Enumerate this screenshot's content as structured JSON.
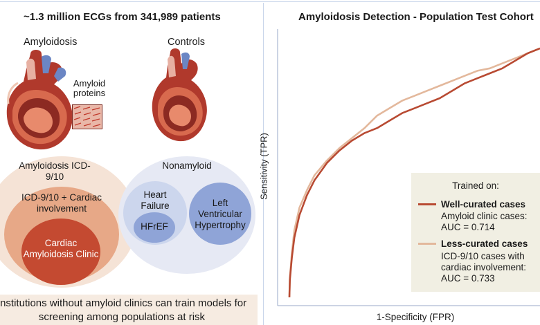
{
  "left_panel": {
    "title": "~1.3 million ECGs from 341,989 patients",
    "amyloidosis_label": "Amyloidosis",
    "controls_label": "Controls",
    "amyloid_callout": "Amyloid proteins",
    "venn_amyloidosis": {
      "outer": "Amyloidosis ICD-9/10",
      "middle": "ICD-9/10 + Cardiac involvement",
      "inner": "Cardiac Amyloidosis Clinic"
    },
    "venn_controls": {
      "outer": "Nonamyloid",
      "heart_failure": "Heart Failure",
      "hfref": "HFrEF",
      "lvh": "Left Ventricular Hypertrophy"
    },
    "banner": "Institutions without amyloid clinics can train models for screening among populations at risk",
    "colors": {
      "amy_outer": "#f5e3d6",
      "amy_mid": "#e7a887",
      "amy_inner": "#c44a31",
      "ctrl_outer": "#e6e9f4",
      "ctrl_light": "#ccd6ed",
      "ctrl_dark": "#8fa4d7",
      "banner": "#f6ebe1"
    }
  },
  "chart_data": {
    "type": "line",
    "title": "Amyloidosis Detection - Population Test Cohort",
    "xlabel": "1-Specificity (FPR)",
    "ylabel": "Sensitivity (TPR)",
    "xlim": [
      0,
      1
    ],
    "ylim": [
      0,
      1
    ],
    "grid": false,
    "legend": {
      "placement": "bottom-right",
      "title": "Trained on:"
    },
    "series": [
      {
        "name": "Well-curated cases",
        "description": "Amyloid clinic cases: AUC = 0.714",
        "color": "#b84a32",
        "x": [
          0,
          0.002,
          0.01,
          0.02,
          0.04,
          0.07,
          0.1,
          0.15,
          0.2,
          0.25,
          0.3,
          0.35,
          0.4,
          0.45,
          0.5,
          0.55,
          0.6,
          0.65,
          0.7,
          0.75,
          0.8,
          0.85,
          0.9,
          0.95,
          1.0
        ],
        "y": [
          0,
          0.07,
          0.16,
          0.24,
          0.33,
          0.41,
          0.47,
          0.54,
          0.59,
          0.63,
          0.66,
          0.68,
          0.71,
          0.74,
          0.76,
          0.78,
          0.8,
          0.83,
          0.86,
          0.88,
          0.9,
          0.92,
          0.95,
          0.98,
          1.0
        ]
      },
      {
        "name": "Less-curated cases",
        "description": "ICD-9/10 cases with cardiac involvement: AUC = 0.733",
        "color": "#e3b89c",
        "x": [
          0,
          0.002,
          0.01,
          0.02,
          0.04,
          0.07,
          0.1,
          0.15,
          0.2,
          0.25,
          0.3,
          0.35,
          0.4,
          0.45,
          0.5,
          0.55,
          0.6,
          0.65,
          0.7,
          0.75,
          0.8,
          0.85,
          0.9,
          0.95,
          1.0
        ],
        "y": [
          0,
          0.08,
          0.18,
          0.27,
          0.36,
          0.43,
          0.49,
          0.55,
          0.6,
          0.64,
          0.68,
          0.73,
          0.76,
          0.79,
          0.81,
          0.83,
          0.85,
          0.87,
          0.89,
          0.91,
          0.92,
          0.94,
          0.96,
          0.98,
          1.0
        ]
      }
    ]
  }
}
